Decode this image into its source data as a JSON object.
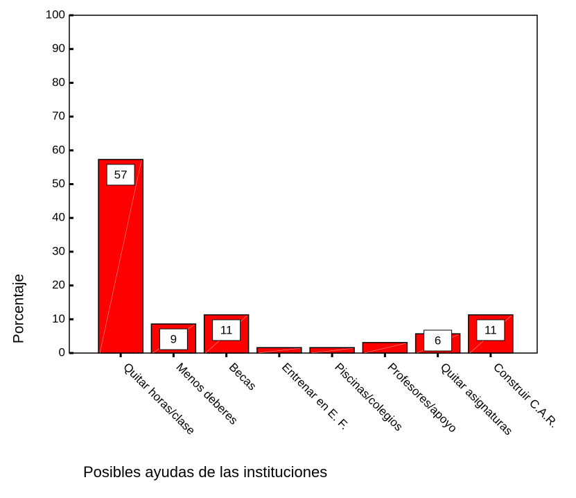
{
  "chart_data": {
    "type": "bar",
    "x_label": "Posibles ayudas de las instituciones",
    "y_label": "Porcentaje",
    "categories": [
      "Quitar horas/clase",
      "Menos deberes",
      "Becas",
      "Entrenar en E. F.",
      "Piscinas/colegios",
      "Profesores/apoyo",
      "Quitar asignaturas",
      "Construir C.A.R."
    ],
    "values": [
      57.3,
      8.6,
      11.3,
      1.6,
      1.6,
      3.1,
      5.7,
      11.3
    ],
    "value_labels": [
      "57",
      "9",
      "11",
      null,
      null,
      null,
      "6",
      "11"
    ],
    "color": "#ff0000",
    "ylim": [
      0,
      100
    ],
    "yticks": [
      0,
      10,
      20,
      30,
      40,
      50,
      60,
      70,
      80,
      90,
      100
    ]
  }
}
